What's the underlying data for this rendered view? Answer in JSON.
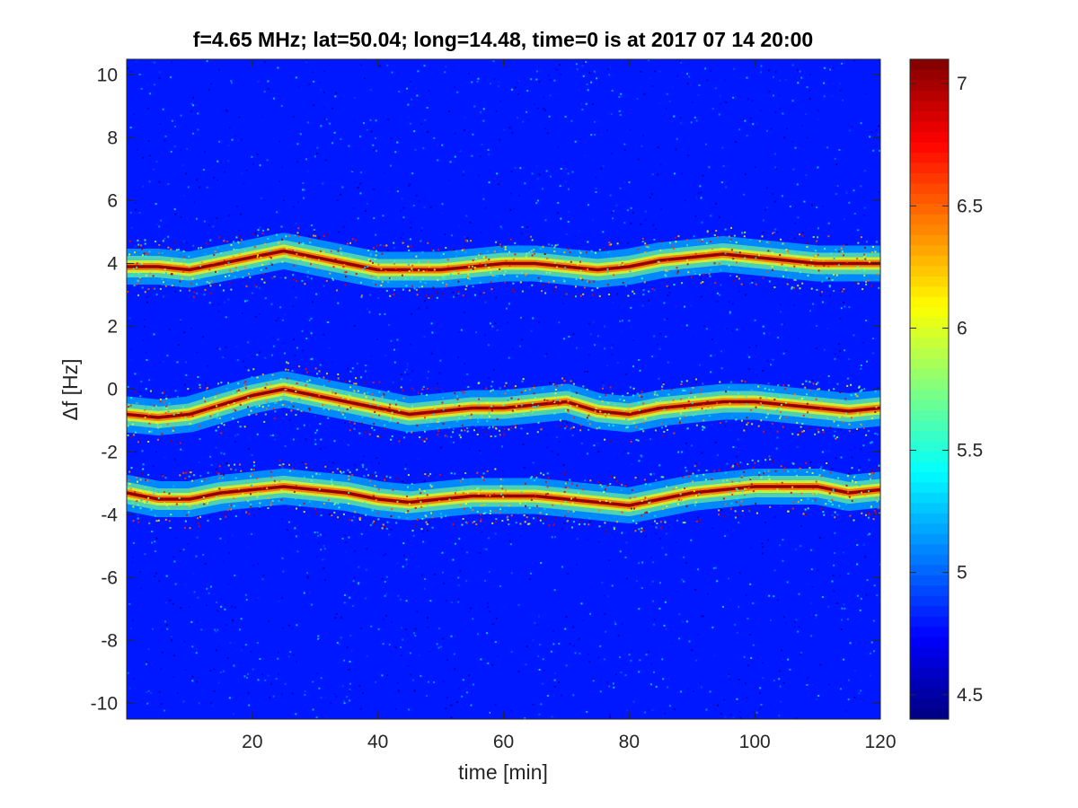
{
  "chart_data": {
    "type": "heatmap",
    "title": "f=4.65 MHz;  lat=50.04; long=14.48, time=0 is at 2017 07 14 20:00",
    "xlabel": "time [min]",
    "ylabel": "Δf [Hz]",
    "xlim": [
      0,
      120
    ],
    "ylim": [
      -10.5,
      10.5
    ],
    "xticks": [
      20,
      40,
      60,
      80,
      100,
      120
    ],
    "yticks": [
      -10,
      -8,
      -6,
      -4,
      -2,
      0,
      2,
      4,
      6,
      8,
      10
    ],
    "colorbar": {
      "colormap": "jet",
      "clim": [
        4.4,
        7.1
      ],
      "ticks": [
        4.5,
        5,
        5.5,
        6,
        6.5,
        7
      ]
    },
    "background_level": 4.8,
    "traces": [
      {
        "name": "",
        "points": [
          [
            0,
            3.9
          ],
          [
            5,
            3.9
          ],
          [
            10,
            3.8
          ],
          [
            15,
            4.0
          ],
          [
            20,
            4.2
          ],
          [
            25,
            4.4
          ],
          [
            30,
            4.2
          ],
          [
            35,
            4.0
          ],
          [
            40,
            3.8
          ],
          [
            45,
            3.8
          ],
          [
            50,
            3.8
          ],
          [
            55,
            3.9
          ],
          [
            60,
            4.0
          ],
          [
            65,
            4.0
          ],
          [
            70,
            3.9
          ],
          [
            75,
            3.8
          ],
          [
            80,
            3.9
          ],
          [
            85,
            4.1
          ],
          [
            90,
            4.2
          ],
          [
            95,
            4.3
          ],
          [
            100,
            4.2
          ],
          [
            105,
            4.1
          ],
          [
            110,
            4.0
          ],
          [
            115,
            4.0
          ],
          [
            120,
            4.0
          ]
        ]
      },
      {
        "name": "",
        "points": [
          [
            0,
            -0.8
          ],
          [
            5,
            -0.9
          ],
          [
            10,
            -0.8
          ],
          [
            15,
            -0.5
          ],
          [
            20,
            -0.2
          ],
          [
            25,
            0.0
          ],
          [
            30,
            -0.2
          ],
          [
            35,
            -0.4
          ],
          [
            40,
            -0.6
          ],
          [
            45,
            -0.8
          ],
          [
            50,
            -0.7
          ],
          [
            55,
            -0.6
          ],
          [
            60,
            -0.6
          ],
          [
            65,
            -0.5
          ],
          [
            70,
            -0.4
          ],
          [
            75,
            -0.7
          ],
          [
            80,
            -0.8
          ],
          [
            85,
            -0.6
          ],
          [
            90,
            -0.5
          ],
          [
            95,
            -0.4
          ],
          [
            100,
            -0.4
          ],
          [
            105,
            -0.5
          ],
          [
            110,
            -0.6
          ],
          [
            115,
            -0.7
          ],
          [
            120,
            -0.6
          ]
        ]
      },
      {
        "name": "",
        "points": [
          [
            0,
            -3.3
          ],
          [
            5,
            -3.5
          ],
          [
            10,
            -3.5
          ],
          [
            15,
            -3.3
          ],
          [
            20,
            -3.2
          ],
          [
            25,
            -3.1
          ],
          [
            30,
            -3.2
          ],
          [
            35,
            -3.3
          ],
          [
            40,
            -3.5
          ],
          [
            45,
            -3.6
          ],
          [
            50,
            -3.5
          ],
          [
            55,
            -3.4
          ],
          [
            60,
            -3.4
          ],
          [
            65,
            -3.4
          ],
          [
            70,
            -3.5
          ],
          [
            75,
            -3.6
          ],
          [
            80,
            -3.7
          ],
          [
            85,
            -3.5
          ],
          [
            90,
            -3.3
          ],
          [
            95,
            -3.2
          ],
          [
            100,
            -3.1
          ],
          [
            105,
            -3.1
          ],
          [
            110,
            -3.1
          ],
          [
            115,
            -3.3
          ],
          [
            120,
            -3.2
          ]
        ]
      }
    ]
  }
}
